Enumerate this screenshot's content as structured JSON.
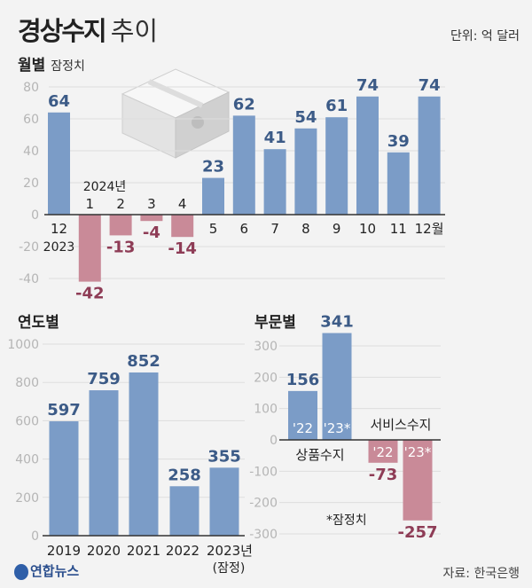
{
  "header": {
    "title_bold": "경상수지",
    "title_light": "추이",
    "unit": "단위: 억 달러"
  },
  "colors": {
    "positive": "#7b9cc7",
    "negative": "#c98a98",
    "positive_label": "#3c5b87",
    "negative_label": "#8e3c56",
    "grid": "#dedede",
    "tick": "#b5b5b5"
  },
  "chart_data": [
    {
      "type": "bar",
      "title": "월별",
      "subtitle": "잠정치",
      "categories": [
        "12",
        "1",
        "2",
        "3",
        "4",
        "5",
        "6",
        "7",
        "8",
        "9",
        "10",
        "11",
        "12월"
      ],
      "year_labels": [
        "2023",
        "2024년"
      ],
      "values": [
        64,
        -42,
        -13,
        -4,
        -14,
        23,
        62,
        41,
        54,
        61,
        74,
        39,
        74
      ],
      "ylim": [
        -40,
        80
      ],
      "yticks": [
        80,
        60,
        40,
        20,
        0,
        -20,
        -40
      ],
      "grid": true
    },
    {
      "type": "bar",
      "title": "연도별",
      "categories": [
        "2019",
        "2020",
        "2021",
        "2022",
        "2023년"
      ],
      "category_note": "(잠정)",
      "values": [
        597,
        759,
        852,
        258,
        355
      ],
      "ylim": [
        0,
        1000
      ],
      "yticks": [
        1000,
        800,
        600,
        400,
        200,
        0
      ],
      "grid": true
    },
    {
      "type": "bar",
      "title": "부문별",
      "groups": [
        {
          "name": "상품수지",
          "bars": [
            {
              "label": "'22",
              "value": 156
            },
            {
              "label": "'23*",
              "value": 341
            }
          ]
        },
        {
          "name": "서비스수지",
          "bars": [
            {
              "label": "'22",
              "value": -73
            },
            {
              "label": "'23*",
              "value": -257
            }
          ]
        }
      ],
      "note": "*잠정치",
      "ylim": [
        -300,
        300
      ],
      "yticks": [
        300,
        200,
        100,
        0,
        -100,
        -200,
        -300
      ],
      "grid": true
    }
  ],
  "footer": {
    "logo": "연합뉴스",
    "source": "자료: 한국은행"
  }
}
